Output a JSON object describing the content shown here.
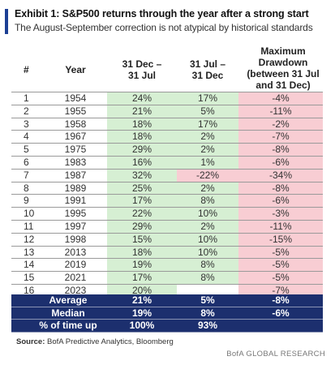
{
  "header": {
    "title": "Exhibit 1: S&P500 returns through the year after a strong start",
    "subtitle": "The August-September correction is not atypical by historical standards"
  },
  "columns": {
    "idx": "#",
    "year": "Year",
    "a_line1": "31 Dec –",
    "a_line2": "31 Jul",
    "b_line1": "31 Jul –",
    "b_line2": "31 Dec",
    "c_line1": "Maximum",
    "c_line2": "Drawdown",
    "c_line3": "(between 31 Jul",
    "c_line4": "and 31 Dec)"
  },
  "colors": {
    "positive": "#d6efd3",
    "negative": "#f8cdd3",
    "navy": "#1c2f6e",
    "accent": "#1c3f94"
  },
  "chart_data": {
    "type": "table",
    "columns": [
      "#",
      "Year",
      "31 Dec – 31 Jul",
      "31 Jul – 31 Dec",
      "Maximum Drawdown (between 31 Jul and 31 Dec)"
    ],
    "rows": [
      {
        "idx": "1",
        "year": "1954",
        "a": "24%",
        "b": "17%",
        "c": "-4%"
      },
      {
        "idx": "2",
        "year": "1955",
        "a": "21%",
        "b": "5%",
        "c": "-11%"
      },
      {
        "idx": "3",
        "year": "1958",
        "a": "18%",
        "b": "17%",
        "c": "-2%"
      },
      {
        "idx": "4",
        "year": "1967",
        "a": "18%",
        "b": "2%",
        "c": "-7%"
      },
      {
        "idx": "5",
        "year": "1975",
        "a": "29%",
        "b": "2%",
        "c": "-8%"
      },
      {
        "idx": "6",
        "year": "1983",
        "a": "16%",
        "b": "1%",
        "c": "-6%"
      },
      {
        "idx": "7",
        "year": "1987",
        "a": "32%",
        "b": "-22%",
        "c": "-34%"
      },
      {
        "idx": "8",
        "year": "1989",
        "a": "25%",
        "b": "2%",
        "c": "-8%"
      },
      {
        "idx": "9",
        "year": "1991",
        "a": "17%",
        "b": "8%",
        "c": "-6%"
      },
      {
        "idx": "10",
        "year": "1995",
        "a": "22%",
        "b": "10%",
        "c": "-3%"
      },
      {
        "idx": "11",
        "year": "1997",
        "a": "29%",
        "b": "2%",
        "c": "-11%"
      },
      {
        "idx": "12",
        "year": "1998",
        "a": "15%",
        "b": "10%",
        "c": "-15%"
      },
      {
        "idx": "13",
        "year": "2013",
        "a": "18%",
        "b": "10%",
        "c": "-5%"
      },
      {
        "idx": "14",
        "year": "2019",
        "a": "19%",
        "b": "8%",
        "c": "-5%"
      },
      {
        "idx": "15",
        "year": "2021",
        "a": "17%",
        "b": "8%",
        "c": "-5%"
      },
      {
        "idx": "16",
        "year": "2023",
        "a": "20%",
        "b": "",
        "c": "-7%"
      }
    ],
    "summary": [
      {
        "label": "Average",
        "a": "21%",
        "b": "5%",
        "c": "-8%"
      },
      {
        "label": "Median",
        "a": "19%",
        "b": "8%",
        "c": "-6%"
      },
      {
        "label": "% of time up",
        "a": "100%",
        "b": "93%",
        "c": ""
      }
    ]
  },
  "footer": {
    "source_label": "Source:",
    "source_text": "BofA Predictive Analytics, Bloomberg",
    "brand": "BofA GLOBAL RESEARCH"
  }
}
